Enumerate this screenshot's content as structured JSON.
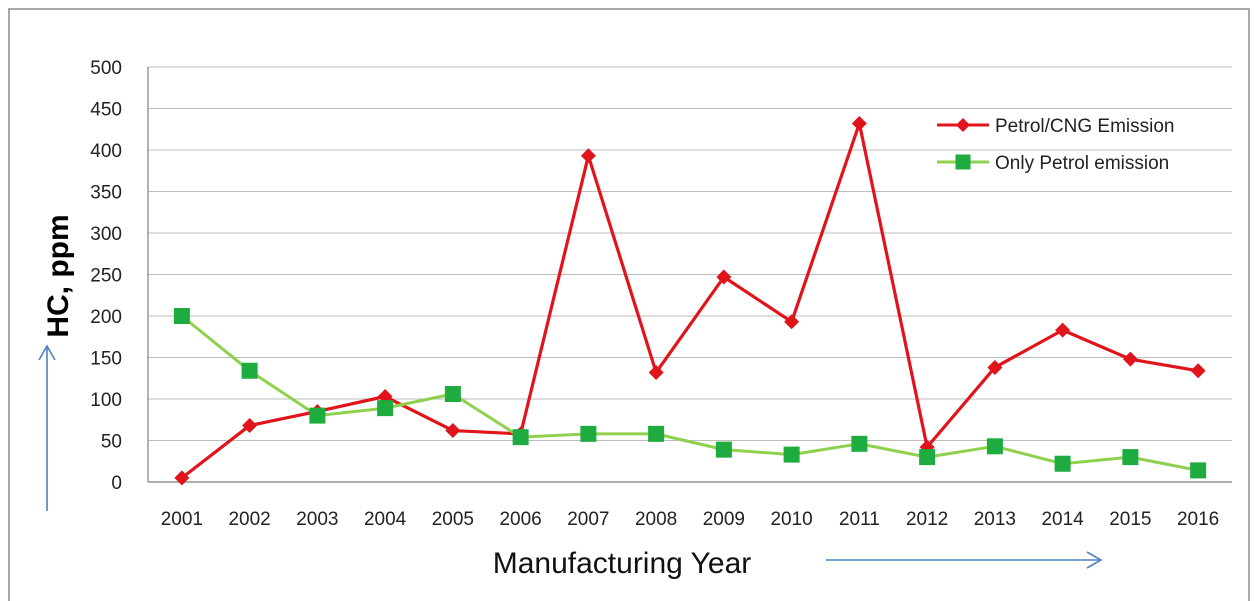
{
  "chart_data": {
    "type": "line",
    "title": "",
    "xlabel": "Manufacturing Year",
    "ylabel": "HC, ppm",
    "ylim": [
      0,
      500
    ],
    "yticks": [
      0,
      50,
      100,
      150,
      200,
      250,
      300,
      350,
      400,
      450,
      500
    ],
    "grid": "horizontal",
    "legend_position": "top-right",
    "categories": [
      "2001",
      "2002",
      "2003",
      "2004",
      "2005",
      "2006",
      "2007",
      "2008",
      "2009",
      "2010",
      "2011",
      "2012",
      "2013",
      "2014",
      "2015",
      "2016"
    ],
    "series": [
      {
        "name": "Petrol/CNG Emission",
        "color": "#e0141a",
        "marker": "diamond",
        "values": [
          5,
          68,
          85,
          103,
          62,
          58,
          393,
          132,
          247,
          193,
          432,
          42,
          138,
          183,
          148,
          134
        ]
      },
      {
        "name": "Only Petrol emission",
        "color": "#8fd14f",
        "marker_color": "#1eab3f",
        "marker": "square",
        "values": [
          200,
          134,
          80,
          89,
          106,
          54,
          58,
          58,
          39,
          33,
          46,
          30,
          43,
          22,
          30,
          14
        ]
      }
    ]
  },
  "colors": {
    "arrow": "#4f81bd",
    "grid": "#bdbdbd",
    "axis": "#7f7f7f",
    "frame": "#8c8c8c"
  }
}
